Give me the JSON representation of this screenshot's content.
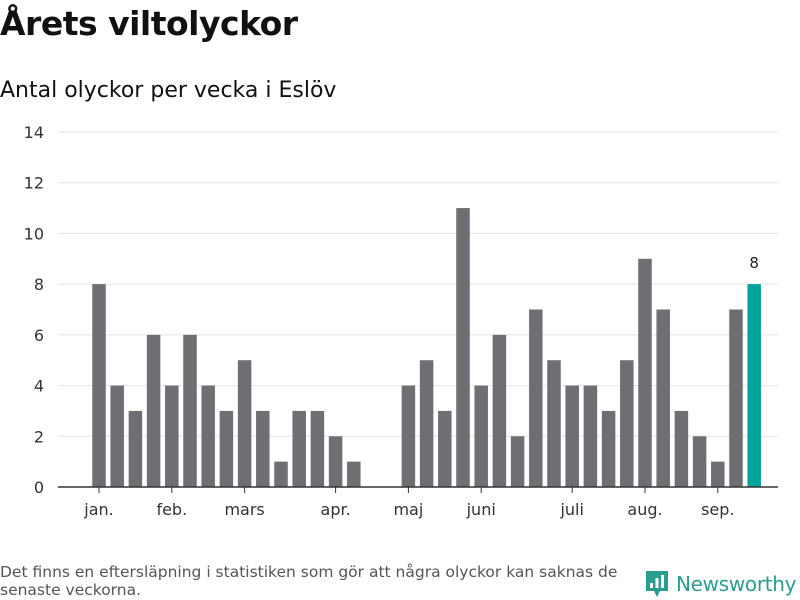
{
  "title": "Årets viltolyckor",
  "subtitle": "Antal olyckor per vecka i Eslöv",
  "footnote": "Det finns en eftersläpning i statistiken som gör att några olyckor kan saknas de senaste veckorna.",
  "brand": {
    "name": "Newsworthy",
    "icon": "newsworthy-logo-icon",
    "color": "#2a9d8f"
  },
  "chart_data": {
    "type": "bar",
    "title": "Antal olyckor per vecka i Eslöv",
    "ylim": [
      0,
      14
    ],
    "yticks": [
      0,
      2,
      4,
      6,
      8,
      10,
      12,
      14
    ],
    "grid": true,
    "x": [
      1,
      2,
      3,
      4,
      5,
      6,
      7,
      8,
      9,
      10,
      11,
      12,
      13,
      14,
      15,
      16,
      17,
      18,
      19,
      20,
      21,
      22,
      23,
      24,
      25,
      26,
      27,
      28,
      29,
      30,
      31,
      32,
      33,
      34,
      35,
      36,
      37
    ],
    "values": [
      8,
      4,
      3,
      6,
      4,
      6,
      4,
      3,
      5,
      3,
      1,
      3,
      3,
      2,
      1,
      null,
      null,
      4,
      5,
      3,
      11,
      4,
      6,
      2,
      7,
      5,
      4,
      4,
      3,
      5,
      9,
      7,
      3,
      2,
      1,
      7,
      8
    ],
    "x_tick_labels": [
      {
        "x": 1,
        "label": "jan."
      },
      {
        "x": 5,
        "label": "feb."
      },
      {
        "x": 9,
        "label": "mars"
      },
      {
        "x": 14,
        "label": "apr."
      },
      {
        "x": 18,
        "label": "maj"
      },
      {
        "x": 22,
        "label": "juni"
      },
      {
        "x": 27,
        "label": "juli"
      },
      {
        "x": 31,
        "label": "aug."
      },
      {
        "x": 35,
        "label": "sep."
      }
    ],
    "highlight": {
      "x": 37,
      "value": 8,
      "label": "8"
    },
    "colors": {
      "bar": "#6f6e73",
      "highlight": "#00a39b",
      "grid": "#e2e2e2",
      "axis": "#333333"
    }
  }
}
